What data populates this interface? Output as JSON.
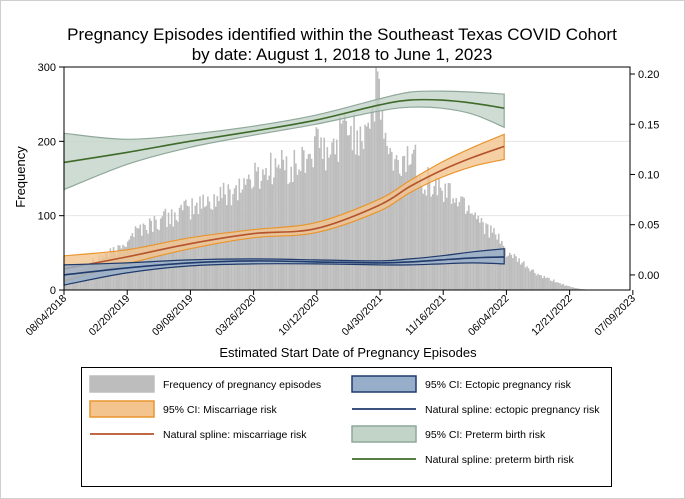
{
  "chart_data": {
    "type": "bar+line",
    "title": [
      "Pregnancy Episodes identified within the Southeast Texas COVID Cohort",
      "by date: August 1, 2018 to June 1, 2023"
    ],
    "xlabel": "Estimated Start Date of Pregnancy Episodes",
    "ylabel": "Frequency",
    "x_ticks": [
      "08/04/2018",
      "02/20/2019",
      "09/08/2019",
      "03/26/2020",
      "10/12/2020",
      "04/30/2021",
      "11/16/2021",
      "06/04/2022",
      "12/21/2022",
      "07/09/2023"
    ],
    "xlim_days": [
      0,
      1800
    ],
    "ylim_left": [
      0,
      300
    ],
    "y_ticks_left": [
      "0",
      "100",
      "200",
      "300"
    ],
    "ylim_right": [
      -0.015,
      0.207
    ],
    "y_ticks_right": [
      "0.00",
      "0.05",
      "0.10",
      "0.15",
      "0.20"
    ],
    "y_tick_values_right": [
      0,
      0.05,
      0.1,
      0.15,
      0.2
    ],
    "histogram_anchors": {
      "day": [
        0,
        60,
        120,
        180,
        210,
        240,
        300,
        360,
        420,
        480,
        540,
        600,
        660,
        690,
        720,
        750,
        780,
        810,
        840,
        870,
        900,
        930,
        960,
        990,
        1000,
        1020,
        1050,
        1080,
        1110,
        1140,
        1170,
        1200,
        1230,
        1260,
        1290,
        1320,
        1350,
        1380,
        1410,
        1440,
        1470,
        1500,
        1530,
        1560,
        1590,
        1620,
        1650
      ],
      "count": [
        14,
        28,
        45,
        55,
        75,
        82,
        92,
        102,
        112,
        122,
        135,
        150,
        165,
        168,
        162,
        168,
        182,
        195,
        175,
        200,
        225,
        205,
        222,
        255,
        275,
        205,
        162,
        172,
        185,
        152,
        142,
        135,
        128,
        120,
        112,
        98,
        82,
        68,
        50,
        40,
        32,
        22,
        16,
        12,
        7,
        3,
        1
      ]
    },
    "series": [
      {
        "name": "Preterm birth risk",
        "color": "#3f6b2a",
        "ci_fill": "#c2d3c8",
        "ci_stroke": "#8fa89a",
        "day": [
          0,
          200,
          400,
          600,
          800,
          1000,
          1100,
          1200,
          1300,
          1400
        ],
        "fit": [
          0.112,
          0.122,
          0.133,
          0.143,
          0.154,
          0.169,
          0.174,
          0.174,
          0.171,
          0.166
        ],
        "lower": [
          0.085,
          0.11,
          0.127,
          0.139,
          0.15,
          0.163,
          0.167,
          0.166,
          0.16,
          0.147
        ],
        "upper": [
          0.141,
          0.135,
          0.14,
          0.148,
          0.159,
          0.175,
          0.182,
          0.183,
          0.182,
          0.18
        ]
      },
      {
        "name": "Miscarriage risk",
        "color": "#b5532c",
        "ci_fill": "#f4c48f",
        "ci_stroke": "#e8952e",
        "day": [
          0,
          200,
          400,
          600,
          800,
          1000,
          1100,
          1200,
          1300,
          1400
        ],
        "fit": [
          0.006,
          0.018,
          0.031,
          0.041,
          0.046,
          0.069,
          0.088,
          0.104,
          0.117,
          0.128
        ],
        "lower": [
          -0.006,
          0.011,
          0.026,
          0.037,
          0.042,
          0.063,
          0.082,
          0.097,
          0.108,
          0.115
        ],
        "upper": [
          0.019,
          0.025,
          0.037,
          0.045,
          0.052,
          0.075,
          0.094,
          0.112,
          0.127,
          0.14
        ]
      },
      {
        "name": "Ectopic pregnancy risk",
        "color": "#1f3a6b",
        "ci_fill": "#96aec9",
        "ci_stroke": "#1f3a6b",
        "day": [
          0,
          200,
          400,
          600,
          800,
          1000,
          1100,
          1200,
          1300,
          1400
        ],
        "fit": [
          0.0,
          0.007,
          0.012,
          0.014,
          0.013,
          0.012,
          0.013,
          0.015,
          0.017,
          0.018
        ],
        "lower": [
          -0.01,
          0.002,
          0.009,
          0.011,
          0.011,
          0.01,
          0.01,
          0.011,
          0.012,
          0.011
        ],
        "upper": [
          0.01,
          0.012,
          0.015,
          0.016,
          0.015,
          0.014,
          0.016,
          0.019,
          0.023,
          0.026
        ]
      }
    ],
    "legend": {
      "placement": "bottom",
      "items": [
        {
          "key": "hist",
          "label": "Frequency of pregnancy episodes"
        },
        {
          "key": "ci_ectopic",
          "label": "95% CI: Ectopic pregnancy risk"
        },
        {
          "key": "ci_misc",
          "label": "95% CI: Miscarriage risk"
        },
        {
          "key": "line_ectopic",
          "label": "Natural spline: ectopic pregnancy risk"
        },
        {
          "key": "line_misc",
          "label": "Natural spline: miscarriage risk"
        },
        {
          "key": "ci_preterm",
          "label": "95% CI: Preterm birth risk"
        },
        {
          "key": "line_preterm",
          "label": "Natural spline: preterm birth risk"
        }
      ]
    },
    "colors": {
      "histogram": "#bdbdbd",
      "plot_background": "#ffffff",
      "grid": "#e6e6e6",
      "frame": "#000000"
    }
  }
}
